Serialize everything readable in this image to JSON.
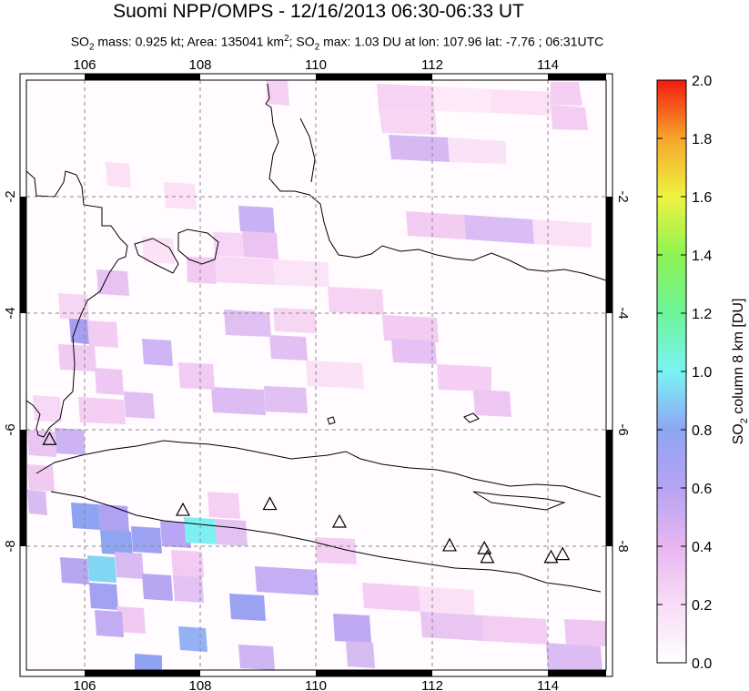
{
  "title": "Suomi NPP/OMPS - 12/16/2013 06:30-06:33 UT",
  "subtitle": {
    "p1": "SO",
    "sub1": "2",
    "p2": " mass: 0.925 kt; Area: 135041 km",
    "sup": "2",
    "p3": "; SO",
    "sub2": "2",
    "p4": " max: 1.03 DU at lon: 107.96 lat: -7.76 ; 06:31UTC"
  },
  "map": {
    "lon_range": [
      105,
      115
    ],
    "lat_range": [
      -10,
      0
    ],
    "lon_ticks": [
      "106",
      "108",
      "110",
      "112",
      "114"
    ],
    "lat_ticks": [
      "-2",
      "-4",
      "-6",
      "-8"
    ],
    "max_marker": {
      "lon": 107.96,
      "lat": -7.76,
      "value": 1.03
    }
  },
  "colorbar": {
    "title_parts": [
      "SO",
      "2",
      " column 8 km [DU]"
    ],
    "ticks": [
      "0.0",
      "0.2",
      "0.4",
      "0.6",
      "0.8",
      "1.0",
      "1.2",
      "1.4",
      "1.6",
      "1.8",
      "2.0"
    ],
    "min": 0.0,
    "max": 2.0,
    "colors": [
      "#ffffff",
      "#f6c7f2",
      "#c7a7f4",
      "#7f9ff2",
      "#79f2f4",
      "#6ef38d",
      "#b9f347",
      "#f7ee3c",
      "#f69a2a",
      "#f23011"
    ]
  },
  "volcano_markers": [
    {
      "name": "volcano-1",
      "lon": 105.4,
      "lat": -6.1
    },
    {
      "name": "volcano-2",
      "lon": 107.7,
      "lat": -7.3
    },
    {
      "name": "volcano-3",
      "lon": 109.2,
      "lat": -7.2
    },
    {
      "name": "volcano-4",
      "lon": 110.4,
      "lat": -7.5
    },
    {
      "name": "volcano-5",
      "lon": 112.3,
      "lat": -7.9
    },
    {
      "name": "volcano-6",
      "lon": 112.9,
      "lat": -7.95
    },
    {
      "name": "volcano-7",
      "lon": 112.95,
      "lat": -8.1
    },
    {
      "name": "volcano-8",
      "lon": 114.05,
      "lat": -8.1
    },
    {
      "name": "volcano-9",
      "lon": 114.25,
      "lat": -8.05
    }
  ]
}
